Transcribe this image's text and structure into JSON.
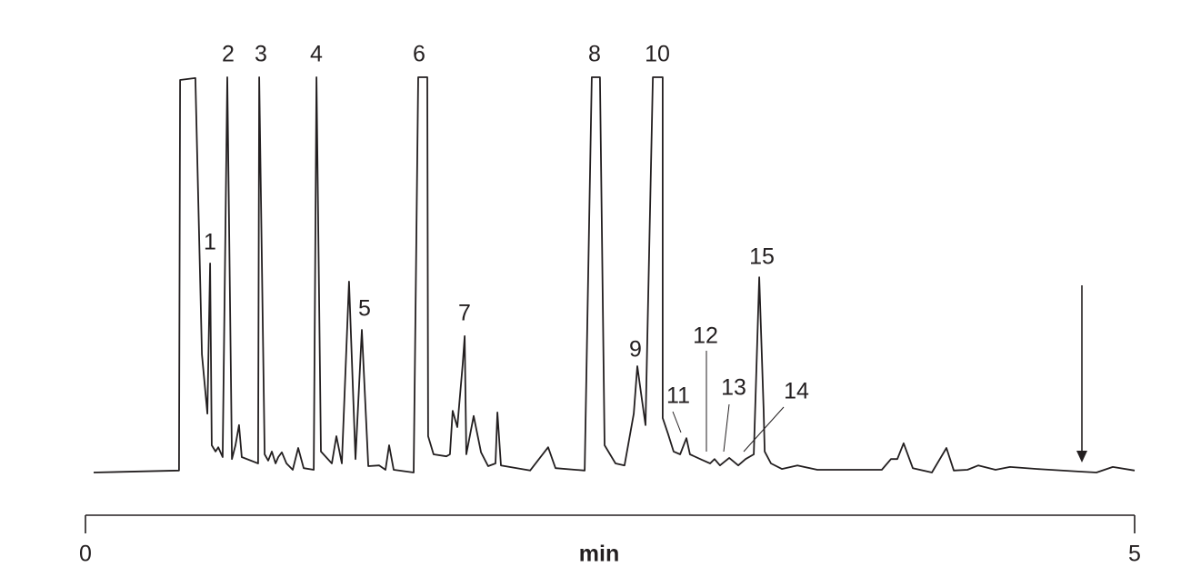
{
  "chart_data": {
    "type": "line",
    "xlabel": "min",
    "xlim": [
      0,
      5
    ],
    "xticks": [
      0,
      5
    ],
    "ylim": [
      0,
      100
    ],
    "color": "#231f20",
    "x": [
      0.039,
      0.446,
      0.451,
      0.524,
      0.555,
      0.581,
      0.594,
      0.602,
      0.62,
      0.633,
      0.654,
      0.676,
      0.698,
      0.715,
      0.732,
      0.745,
      0.823,
      0.828,
      0.854,
      0.871,
      0.888,
      0.906,
      0.919,
      0.936,
      0.958,
      0.988,
      1.014,
      1.04,
      1.088,
      1.101,
      1.122,
      1.174,
      1.196,
      1.222,
      1.256,
      1.287,
      1.317,
      1.348,
      1.4,
      1.43,
      1.447,
      1.469,
      1.564,
      1.586,
      1.629,
      1.633,
      1.659,
      1.72,
      1.737,
      1.75,
      1.772,
      1.798,
      1.807,
      1.815,
      1.85,
      1.885,
      1.919,
      1.954,
      1.963,
      1.98,
      2.119,
      2.205,
      2.24,
      2.379,
      2.413,
      2.452,
      2.474,
      2.526,
      2.569,
      2.613,
      2.63,
      2.652,
      2.669,
      2.704,
      2.751,
      2.751,
      2.777,
      2.803,
      2.834,
      2.864,
      2.881,
      2.938,
      2.977,
      2.998,
      3.024,
      3.068,
      3.111,
      3.146,
      3.185,
      3.211,
      3.232,
      3.237,
      3.267,
      3.319,
      3.393,
      3.488,
      3.795,
      3.839,
      3.869,
      3.899,
      3.943,
      4.034,
      4.103,
      4.138,
      4.203,
      4.255,
      4.337,
      4.406,
      4.536,
      4.749,
      4.818,
      4.896,
      5.0
    ],
    "values": [
      0,
      0.5,
      99.3,
      99.8,
      29.9,
      14.9,
      52.9,
      6.9,
      5.3,
      6.4,
      3.9,
      100,
      3.4,
      6.9,
      12.0,
      3.9,
      2.3,
      100,
      4.6,
      3.0,
      5.3,
      2.3,
      3.9,
      5.1,
      2.3,
      0.7,
      6.2,
      1.1,
      0.7,
      100,
      5.3,
      2.3,
      9.2,
      2.3,
      48.3,
      3.4,
      36.1,
      1.6,
      1.8,
      0.7,
      6.9,
      0.7,
      0,
      100,
      100,
      9.2,
      4.6,
      4.1,
      4.6,
      15.6,
      11.5,
      27.6,
      34.5,
      4.6,
      14.3,
      5.1,
      1.6,
      2.3,
      15.2,
      1.8,
      0.5,
      6.4,
      1.1,
      0.5,
      100,
      100,
      6.9,
      2.3,
      1.8,
      14.9,
      26.9,
      18.4,
      12.0,
      100,
      100,
      13.8,
      9.7,
      5.3,
      4.6,
      8.7,
      4.6,
      3.2,
      2.3,
      3.4,
      1.8,
      3.7,
      1.8,
      3.4,
      4.6,
      49.4,
      16.1,
      5.3,
      2.3,
      0.9,
      1.8,
      0.7,
      0.7,
      3.4,
      3.4,
      7.4,
      1.1,
      0,
      6.2,
      0.5,
      0.7,
      1.8,
      0.7,
      1.4,
      0.9,
      0.2,
      0,
      1.4,
      0.5
    ],
    "annotations": [
      "1",
      "2",
      "3",
      "4",
      "5",
      "6",
      "7",
      "8",
      "9",
      "10",
      "11",
      "12",
      "13",
      "14",
      "15"
    ]
  }
}
